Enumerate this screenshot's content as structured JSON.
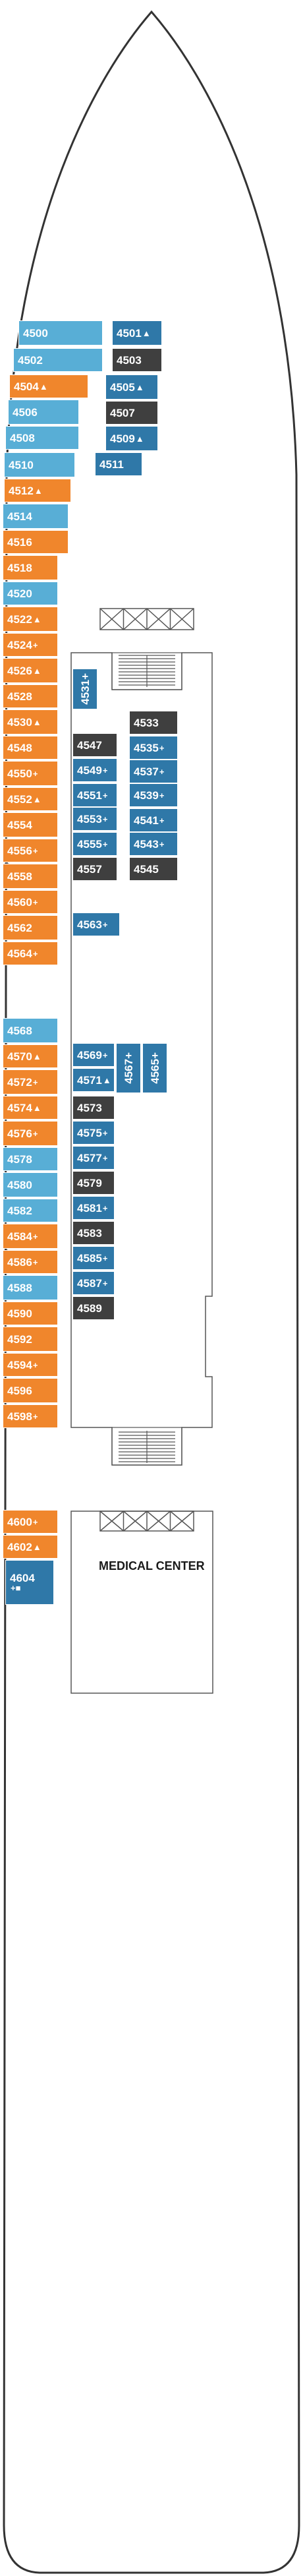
{
  "colors": {
    "orange": "#f0862c",
    "light_blue": "#58aed6",
    "dark_blue": "#2f78a8",
    "dark_grey": "#3f3f3f",
    "outline": "#555555"
  },
  "icons": [
    "stairs-icon",
    "elevator-icon",
    "triangle-accessible-icon",
    "plus-sofa-icon",
    "square-icon",
    "connecting-door-icon"
  ],
  "areas": {
    "medical_center": "MEDICAL CENTER"
  },
  "cabins": [
    {
      "num": "4500",
      "sym": "",
      "color": "lblue"
    },
    {
      "num": "4502",
      "sym": "",
      "color": "lblue"
    },
    {
      "num": "4504",
      "sym": "▲",
      "color": "orange"
    },
    {
      "num": "4506",
      "sym": "",
      "color": "lblue"
    },
    {
      "num": "4508",
      "sym": "",
      "color": "lblue"
    },
    {
      "num": "4510",
      "sym": "",
      "color": "lblue"
    },
    {
      "num": "4512",
      "sym": "▲",
      "color": "orange"
    },
    {
      "num": "4514",
      "sym": "",
      "color": "lblue"
    },
    {
      "num": "4516",
      "sym": "",
      "color": "orange"
    },
    {
      "num": "4518",
      "sym": "",
      "color": "orange"
    },
    {
      "num": "4520",
      "sym": "",
      "color": "lblue"
    },
    {
      "num": "4522",
      "sym": "▲",
      "color": "orange"
    },
    {
      "num": "4524",
      "sym": "+",
      "color": "orange"
    },
    {
      "num": "4526",
      "sym": "▲",
      "color": "orange"
    },
    {
      "num": "4528",
      "sym": "",
      "color": "orange"
    },
    {
      "num": "4530",
      "sym": "▲",
      "color": "orange"
    },
    {
      "num": "4548",
      "sym": "",
      "color": "orange"
    },
    {
      "num": "4550",
      "sym": "+",
      "color": "orange"
    },
    {
      "num": "4552",
      "sym": "▲",
      "color": "orange"
    },
    {
      "num": "4554",
      "sym": "",
      "color": "orange"
    },
    {
      "num": "4556",
      "sym": "+",
      "color": "orange"
    },
    {
      "num": "4558",
      "sym": "",
      "color": "orange"
    },
    {
      "num": "4560",
      "sym": "+",
      "color": "orange"
    },
    {
      "num": "4562",
      "sym": "",
      "color": "orange"
    },
    {
      "num": "4564",
      "sym": "+",
      "color": "orange"
    },
    {
      "num": "4568",
      "sym": "",
      "color": "lblue"
    },
    {
      "num": "4570",
      "sym": "▲",
      "color": "orange"
    },
    {
      "num": "4572",
      "sym": "+",
      "color": "orange"
    },
    {
      "num": "4574",
      "sym": "▲",
      "color": "orange"
    },
    {
      "num": "4576",
      "sym": "+",
      "color": "orange"
    },
    {
      "num": "4578",
      "sym": "",
      "color": "lblue"
    },
    {
      "num": "4580",
      "sym": "",
      "color": "lblue"
    },
    {
      "num": "4582",
      "sym": "",
      "color": "lblue"
    },
    {
      "num": "4584",
      "sym": "+",
      "color": "orange"
    },
    {
      "num": "4586",
      "sym": "+",
      "color": "orange"
    },
    {
      "num": "4588",
      "sym": "",
      "color": "lblue"
    },
    {
      "num": "4590",
      "sym": "",
      "color": "orange"
    },
    {
      "num": "4592",
      "sym": "",
      "color": "orange"
    },
    {
      "num": "4594",
      "sym": "+",
      "color": "orange"
    },
    {
      "num": "4596",
      "sym": "",
      "color": "orange"
    },
    {
      "num": "4598",
      "sym": "+",
      "color": "orange"
    },
    {
      "num": "4600",
      "sym": "+",
      "color": "orange"
    },
    {
      "num": "4602",
      "sym": "▲",
      "color": "orange"
    },
    {
      "num": "4604",
      "sym": "+■",
      "color": "dblue"
    },
    {
      "num": "4501",
      "sym": "▲",
      "color": "dblue"
    },
    {
      "num": "4503",
      "sym": "",
      "color": "dgrey"
    },
    {
      "num": "4505",
      "sym": "▲",
      "color": "dblue"
    },
    {
      "num": "4507",
      "sym": "",
      "color": "dgrey"
    },
    {
      "num": "4509",
      "sym": "▲",
      "color": "dblue"
    },
    {
      "num": "4511",
      "sym": "",
      "color": "dblue"
    },
    {
      "num": "4531",
      "sym": "+",
      "color": "dblue"
    },
    {
      "num": "4533",
      "sym": "",
      "color": "dgrey"
    },
    {
      "num": "4535",
      "sym": "+",
      "color": "dblue"
    },
    {
      "num": "4537",
      "sym": "+",
      "color": "dblue"
    },
    {
      "num": "4539",
      "sym": "+",
      "color": "dblue"
    },
    {
      "num": "4541",
      "sym": "+",
      "color": "dblue"
    },
    {
      "num": "4543",
      "sym": "+",
      "color": "dblue"
    },
    {
      "num": "4545",
      "sym": "",
      "color": "dgrey"
    },
    {
      "num": "4547",
      "sym": "",
      "color": "dgrey"
    },
    {
      "num": "4549",
      "sym": "+",
      "color": "dblue"
    },
    {
      "num": "4551",
      "sym": "+",
      "color": "dblue"
    },
    {
      "num": "4553",
      "sym": "+",
      "color": "dblue"
    },
    {
      "num": "4555",
      "sym": "+",
      "color": "dblue"
    },
    {
      "num": "4557",
      "sym": "",
      "color": "dgrey"
    },
    {
      "num": "4563",
      "sym": "+",
      "color": "dblue"
    },
    {
      "num": "4569",
      "sym": "+",
      "color": "dblue"
    },
    {
      "num": "4571",
      "sym": "▲",
      "color": "dblue"
    },
    {
      "num": "4567",
      "sym": "+",
      "color": "dblue"
    },
    {
      "num": "4565",
      "sym": "+",
      "color": "dblue"
    },
    {
      "num": "4573",
      "sym": "",
      "color": "dgrey"
    },
    {
      "num": "4575",
      "sym": "+",
      "color": "dblue"
    },
    {
      "num": "4577",
      "sym": "+",
      "color": "dblue"
    },
    {
      "num": "4579",
      "sym": "",
      "color": "dgrey"
    },
    {
      "num": "4581",
      "sym": "+",
      "color": "dblue"
    },
    {
      "num": "4583",
      "sym": "",
      "color": "dgrey"
    },
    {
      "num": "4585",
      "sym": "+",
      "color": "dblue"
    },
    {
      "num": "4587",
      "sym": "+",
      "color": "dblue"
    },
    {
      "num": "4589",
      "sym": "",
      "color": "dgrey"
    }
  ]
}
